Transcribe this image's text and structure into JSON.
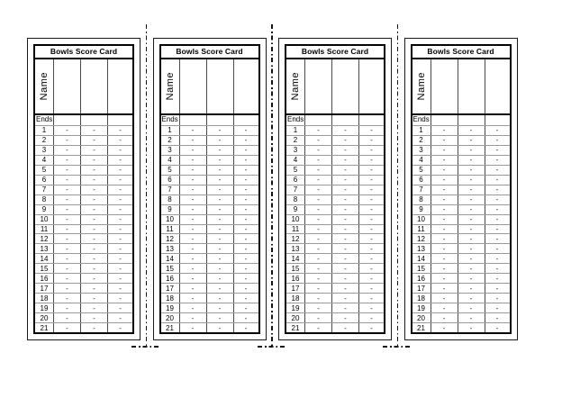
{
  "sheet": {
    "card_count": 4,
    "cut_line_color": "#141414"
  },
  "card": {
    "title": "Bowls Score Card",
    "name_label": "Name",
    "ends_label": "Ends",
    "cell_placeholder": "-",
    "player_columns": 3,
    "end_numbers": [
      "1",
      "2",
      "3",
      "4",
      "5",
      "6",
      "7",
      "8",
      "9",
      "10",
      "11",
      "12",
      "13",
      "14",
      "15",
      "16",
      "17",
      "18",
      "19",
      "20",
      "21"
    ],
    "colors": {
      "table_border": "#000000",
      "card_border": "#1a1a1a",
      "row_line": "#9a9a9a",
      "column_line": "#4a4a4a"
    }
  }
}
